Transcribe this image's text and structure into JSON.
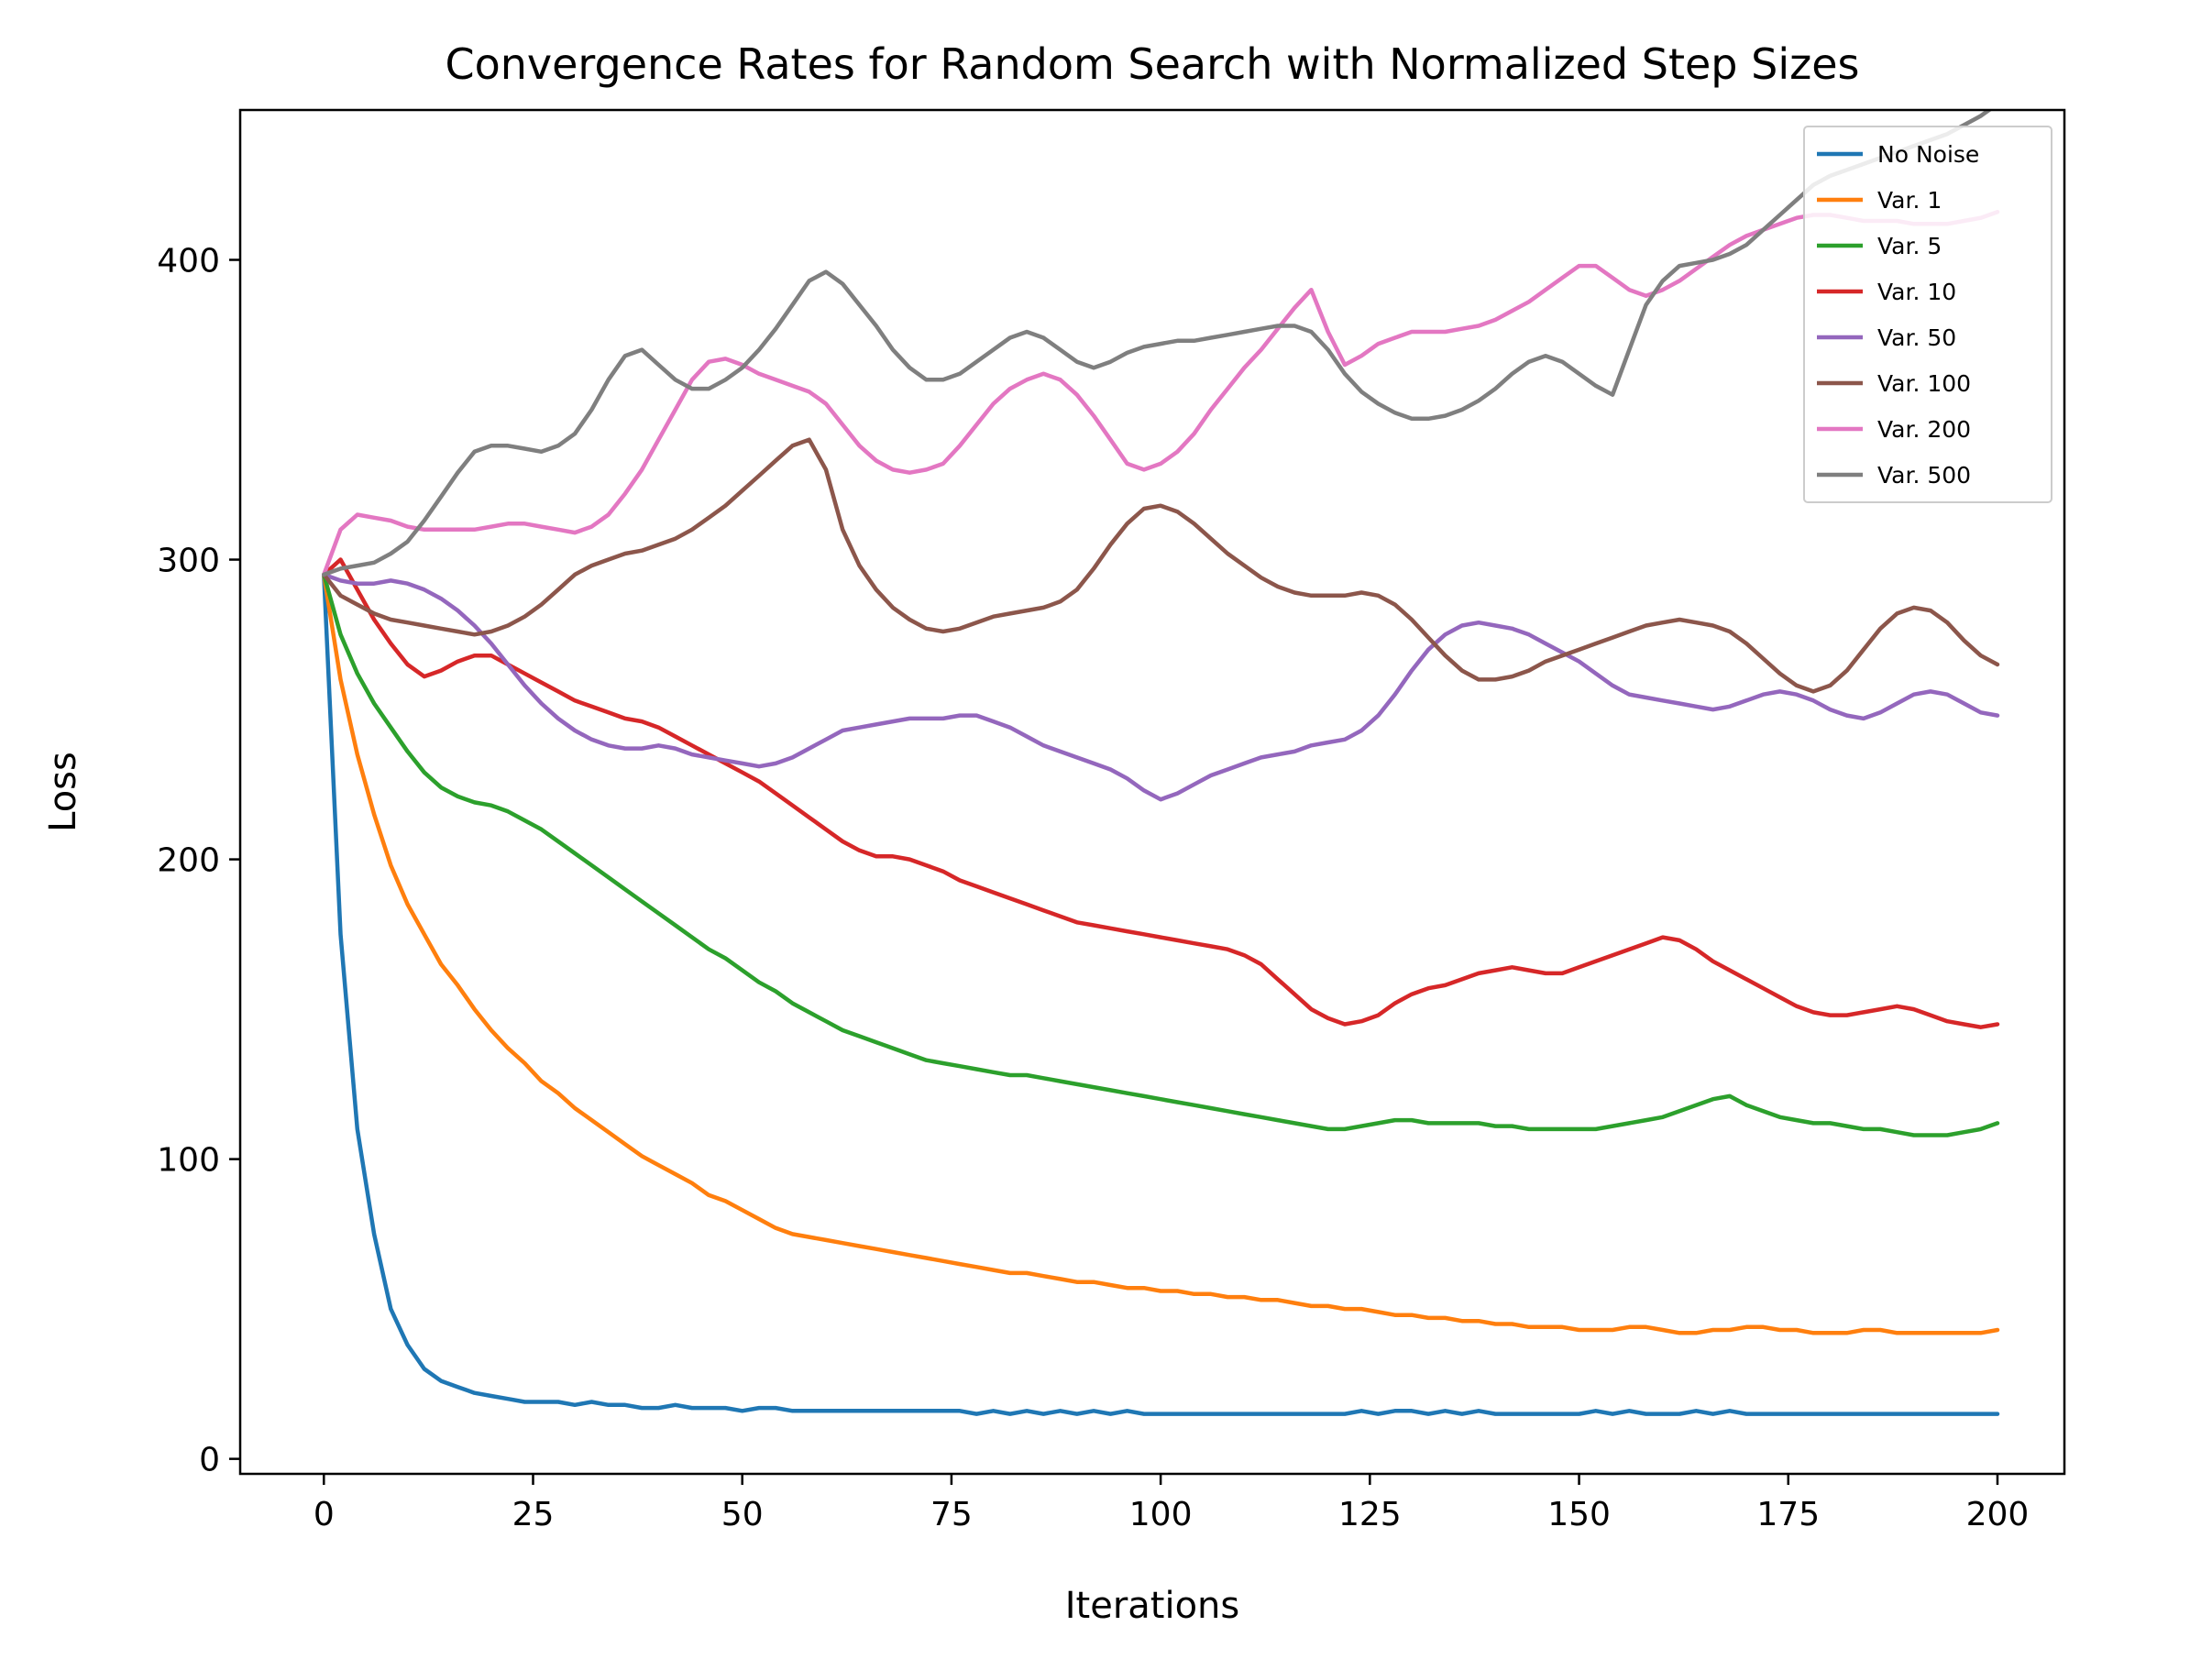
{
  "chart_data": {
    "type": "line",
    "title": "Convergence Rates for Random Search with Normalized Step Sizes",
    "xlabel": "Iterations",
    "ylabel": "Loss",
    "xlim": [
      -10,
      208
    ],
    "ylim": [
      -5,
      450
    ],
    "xticks": [
      0,
      25,
      50,
      75,
      100,
      125,
      150,
      175,
      200
    ],
    "yticks": [
      0,
      100,
      200,
      300,
      400
    ],
    "grid": false,
    "legend_position": "top-right",
    "x": [
      0,
      2,
      4,
      6,
      8,
      10,
      12,
      14,
      16,
      18,
      20,
      22,
      24,
      26,
      28,
      30,
      32,
      34,
      36,
      38,
      40,
      42,
      44,
      46,
      48,
      50,
      52,
      54,
      56,
      58,
      60,
      62,
      64,
      66,
      68,
      70,
      72,
      74,
      76,
      78,
      80,
      82,
      84,
      86,
      88,
      90,
      92,
      94,
      96,
      98,
      100,
      102,
      104,
      106,
      108,
      110,
      112,
      114,
      116,
      118,
      120,
      122,
      124,
      126,
      128,
      130,
      132,
      134,
      136,
      138,
      140,
      142,
      144,
      146,
      148,
      150,
      152,
      154,
      156,
      158,
      160,
      162,
      164,
      166,
      168,
      170,
      172,
      174,
      176,
      178,
      180,
      182,
      184,
      186,
      188,
      190,
      192,
      194,
      196,
      198,
      200
    ],
    "series": [
      {
        "name": "No Noise",
        "color": "#1f77b4",
        "values": [
          295,
          175,
          110,
          75,
          50,
          38,
          30,
          26,
          24,
          22,
          21,
          20,
          19,
          19,
          19,
          18,
          19,
          18,
          18,
          17,
          17,
          18,
          17,
          17,
          17,
          16,
          17,
          17,
          16,
          16,
          16,
          16,
          16,
          16,
          16,
          16,
          16,
          16,
          16,
          15,
          16,
          15,
          16,
          15,
          16,
          15,
          16,
          15,
          16,
          15,
          15,
          15,
          15,
          15,
          15,
          15,
          15,
          15,
          15,
          15,
          15,
          15,
          16,
          15,
          16,
          16,
          15,
          16,
          15,
          16,
          15,
          15,
          15,
          15,
          15,
          15,
          16,
          15,
          16,
          15,
          15,
          15,
          16,
          15,
          16,
          15,
          15,
          15,
          15,
          15,
          15,
          15,
          15,
          15,
          15,
          15,
          15,
          15,
          15,
          15,
          15
        ]
      },
      {
        "name": "Var. 1",
        "color": "#ff7f0e",
        "values": [
          295,
          260,
          235,
          215,
          198,
          185,
          175,
          165,
          158,
          150,
          143,
          137,
          132,
          126,
          122,
          117,
          113,
          109,
          105,
          101,
          98,
          95,
          92,
          88,
          86,
          83,
          80,
          77,
          75,
          74,
          73,
          72,
          71,
          70,
          69,
          68,
          67,
          66,
          65,
          64,
          63,
          62,
          62,
          61,
          60,
          59,
          59,
          58,
          57,
          57,
          56,
          56,
          55,
          55,
          54,
          54,
          53,
          53,
          52,
          51,
          51,
          50,
          50,
          49,
          48,
          48,
          47,
          47,
          46,
          46,
          45,
          45,
          44,
          44,
          44,
          43,
          43,
          43,
          44,
          44,
          43,
          42,
          42,
          43,
          43,
          44,
          44,
          43,
          43,
          42,
          42,
          42,
          43,
          43,
          42,
          42,
          42,
          42,
          42,
          42,
          43
        ]
      },
      {
        "name": "Var. 5",
        "color": "#2ca02c",
        "values": [
          295,
          275,
          262,
          252,
          244,
          236,
          229,
          224,
          221,
          219,
          218,
          216,
          213,
          210,
          206,
          202,
          198,
          194,
          190,
          186,
          182,
          178,
          174,
          170,
          167,
          163,
          159,
          156,
          152,
          149,
          146,
          143,
          141,
          139,
          137,
          135,
          133,
          132,
          131,
          130,
          129,
          128,
          128,
          127,
          126,
          125,
          124,
          123,
          122,
          121,
          120,
          119,
          118,
          117,
          116,
          115,
          114,
          113,
          112,
          111,
          110,
          110,
          111,
          112,
          113,
          113,
          112,
          112,
          112,
          112,
          111,
          111,
          110,
          110,
          110,
          110,
          110,
          111,
          112,
          113,
          114,
          116,
          118,
          120,
          121,
          118,
          116,
          114,
          113,
          112,
          112,
          111,
          110,
          110,
          109,
          108,
          108,
          108,
          109,
          110,
          112
        ]
      },
      {
        "name": "Var. 10",
        "color": "#d62728",
        "values": [
          295,
          300,
          290,
          280,
          272,
          265,
          261,
          263,
          266,
          268,
          268,
          265,
          262,
          259,
          256,
          253,
          251,
          249,
          247,
          246,
          244,
          241,
          238,
          235,
          232,
          229,
          226,
          222,
          218,
          214,
          210,
          206,
          203,
          201,
          201,
          200,
          198,
          196,
          193,
          191,
          189,
          187,
          185,
          183,
          181,
          179,
          178,
          177,
          176,
          175,
          174,
          173,
          172,
          171,
          170,
          168,
          165,
          160,
          155,
          150,
          147,
          145,
          146,
          148,
          152,
          155,
          157,
          158,
          160,
          162,
          163,
          164,
          163,
          162,
          162,
          164,
          166,
          168,
          170,
          172,
          174,
          173,
          170,
          166,
          163,
          160,
          157,
          154,
          151,
          149,
          148,
          148,
          149,
          150,
          151,
          150,
          148,
          146,
          145,
          144,
          145
        ]
      },
      {
        "name": "Var. 50",
        "color": "#9467bd",
        "values": [
          295,
          293,
          292,
          292,
          293,
          292,
          290,
          287,
          283,
          278,
          272,
          265,
          258,
          252,
          247,
          243,
          240,
          238,
          237,
          237,
          238,
          237,
          235,
          234,
          233,
          232,
          231,
          232,
          234,
          237,
          240,
          243,
          244,
          245,
          246,
          247,
          247,
          247,
          248,
          248,
          246,
          244,
          241,
          238,
          236,
          234,
          232,
          230,
          227,
          223,
          220,
          222,
          225,
          228,
          230,
          232,
          234,
          235,
          236,
          238,
          239,
          240,
          243,
          248,
          255,
          263,
          270,
          275,
          278,
          279,
          278,
          277,
          275,
          272,
          269,
          266,
          262,
          258,
          255,
          254,
          253,
          252,
          251,
          250,
          251,
          253,
          255,
          256,
          255,
          253,
          250,
          248,
          247,
          249,
          252,
          255,
          256,
          255,
          252,
          249,
          248
        ]
      },
      {
        "name": "Var. 100",
        "color": "#8c564b",
        "values": [
          295,
          288,
          285,
          282,
          280,
          279,
          278,
          277,
          276,
          275,
          276,
          278,
          281,
          285,
          290,
          295,
          298,
          300,
          302,
          303,
          305,
          307,
          310,
          314,
          318,
          323,
          328,
          333,
          338,
          340,
          330,
          310,
          298,
          290,
          284,
          280,
          277,
          276,
          277,
          279,
          281,
          282,
          283,
          284,
          286,
          290,
          297,
          305,
          312,
          317,
          318,
          316,
          312,
          307,
          302,
          298,
          294,
          291,
          289,
          288,
          288,
          288,
          289,
          288,
          285,
          280,
          274,
          268,
          263,
          260,
          260,
          261,
          263,
          266,
          268,
          270,
          272,
          274,
          276,
          278,
          279,
          280,
          279,
          278,
          276,
          272,
          267,
          262,
          258,
          256,
          258,
          263,
          270,
          277,
          282,
          284,
          283,
          279,
          273,
          268,
          265
        ]
      },
      {
        "name": "Var. 200",
        "color": "#e377c2",
        "values": [
          295,
          310,
          315,
          314,
          313,
          311,
          310,
          310,
          310,
          310,
          311,
          312,
          312,
          311,
          310,
          309,
          311,
          315,
          322,
          330,
          340,
          350,
          360,
          366,
          367,
          365,
          362,
          360,
          358,
          356,
          352,
          345,
          338,
          333,
          330,
          329,
          330,
          332,
          338,
          345,
          352,
          357,
          360,
          362,
          360,
          355,
          348,
          340,
          332,
          330,
          332,
          336,
          342,
          350,
          357,
          364,
          370,
          377,
          384,
          390,
          376,
          365,
          368,
          372,
          374,
          376,
          376,
          376,
          377,
          378,
          380,
          383,
          386,
          390,
          394,
          398,
          398,
          394,
          390,
          388,
          390,
          393,
          397,
          401,
          405,
          408,
          410,
          412,
          414,
          415,
          415,
          414,
          413,
          413,
          413,
          412,
          412,
          412,
          413,
          414,
          416
        ]
      },
      {
        "name": "Var. 500",
        "color": "#7f7f7f",
        "values": [
          295,
          297,
          298,
          299,
          302,
          306,
          313,
          321,
          329,
          336,
          338,
          338,
          337,
          336,
          338,
          342,
          350,
          360,
          368,
          370,
          365,
          360,
          357,
          357,
          360,
          364,
          370,
          377,
          385,
          393,
          396,
          392,
          385,
          378,
          370,
          364,
          360,
          360,
          362,
          366,
          370,
          374,
          376,
          374,
          370,
          366,
          364,
          366,
          369,
          371,
          372,
          373,
          373,
          374,
          375,
          376,
          377,
          378,
          378,
          376,
          370,
          362,
          356,
          352,
          349,
          347,
          347,
          348,
          350,
          353,
          357,
          362,
          366,
          368,
          366,
          362,
          358,
          355,
          370,
          385,
          393,
          398,
          399,
          400,
          402,
          405,
          410,
          415,
          420,
          425,
          428,
          430,
          432,
          434,
          436,
          438,
          440,
          442,
          445,
          448,
          452
        ]
      }
    ]
  }
}
